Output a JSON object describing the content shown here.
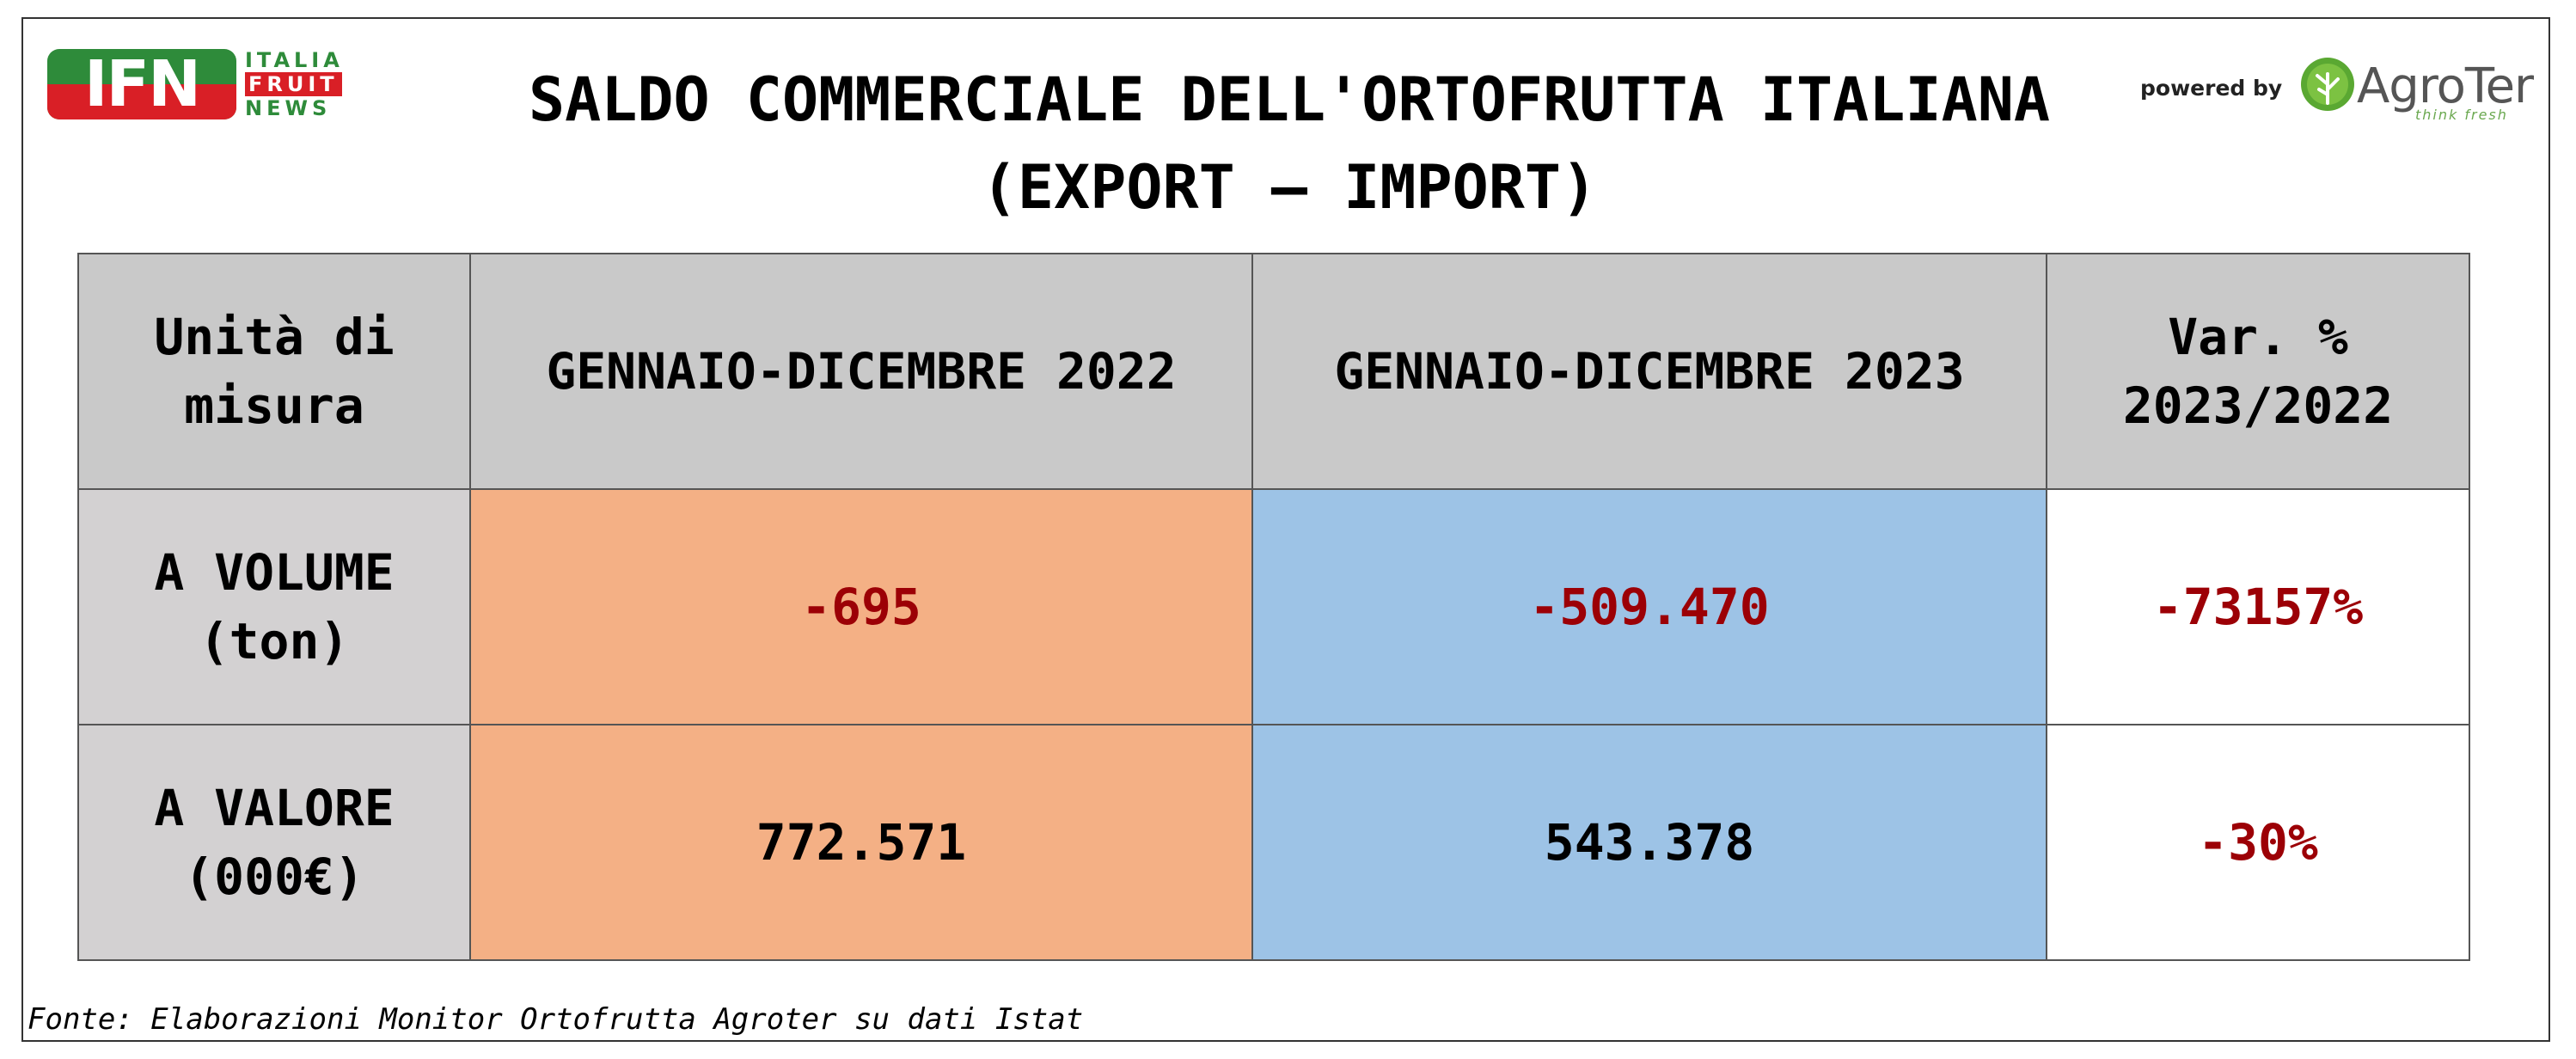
{
  "header": {
    "ifn_logo_letters": "IFN",
    "ifn_words": [
      "ITALIA",
      "FRUIT",
      "NEWS"
    ],
    "title_line1": "SALDO COMMERCIALE DELL'ORTOFRUTTA ITALIANA",
    "title_line2": "(EXPORT – IMPORT)",
    "powered_by": "powered by",
    "agroter_name": "AgroTer",
    "agroter_tagline": "think fresh"
  },
  "table": {
    "headers": [
      "Unità di misura",
      "GENNAIO-DICEMBRE 2022",
      "GENNAIO-DICEMBRE 2023",
      "Var. % 2023/2022"
    ],
    "rows": [
      {
        "label_line1": "A VOLUME",
        "label_line2": "(ton)",
        "v2022": "-695",
        "v2023": "-509.470",
        "var": "-73157%"
      },
      {
        "label_line1": "A VALORE",
        "label_line2": "(000€)",
        "v2022": "772.571",
        "v2023": "543.378",
        "var": "-30%"
      }
    ]
  },
  "colors": {
    "ifn_green": "#2e8b3a",
    "ifn_red": "#d91f26",
    "header_gray": "#c9c9c9",
    "col2022_orange": "#f4b085",
    "col2023_blue": "#9dc3e6",
    "negative_red": "#9c0006"
  },
  "source": "Fonte: Elaborazioni Monitor Ortofrutta Agroter su dati Istat"
}
